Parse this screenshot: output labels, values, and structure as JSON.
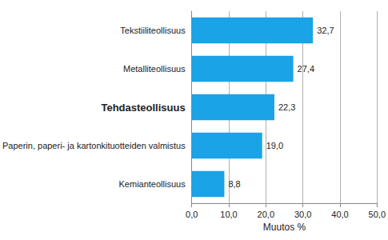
{
  "chart_data": {
    "type": "bar",
    "orientation": "horizontal",
    "categories": [
      "Tekstiiliteollisuus",
      "Metalliteollisuus",
      "Tehdasteollisuus",
      "Paperin, paperi- ja kartonkituotteiden valmistus",
      "Kemianteollisuus"
    ],
    "values": [
      32.7,
      27.4,
      22.3,
      19.0,
      8.8
    ],
    "value_labels": [
      "32,7",
      "27,4",
      "22,3",
      "19,0",
      "8,8"
    ],
    "data_labels": true,
    "color": "#1aa3e6",
    "x_label": "Muutos %",
    "xlim": [
      0,
      50
    ],
    "xticks": [
      {
        "value": 0,
        "label": "0,0"
      },
      {
        "value": 10,
        "label": "10,0"
      },
      {
        "value": 20,
        "label": "20,0"
      },
      {
        "value": 30,
        "label": "30,0"
      },
      {
        "value": 40,
        "label": "40,0"
      },
      {
        "value": 50,
        "label": "50,0"
      }
    ],
    "grid": true
  }
}
